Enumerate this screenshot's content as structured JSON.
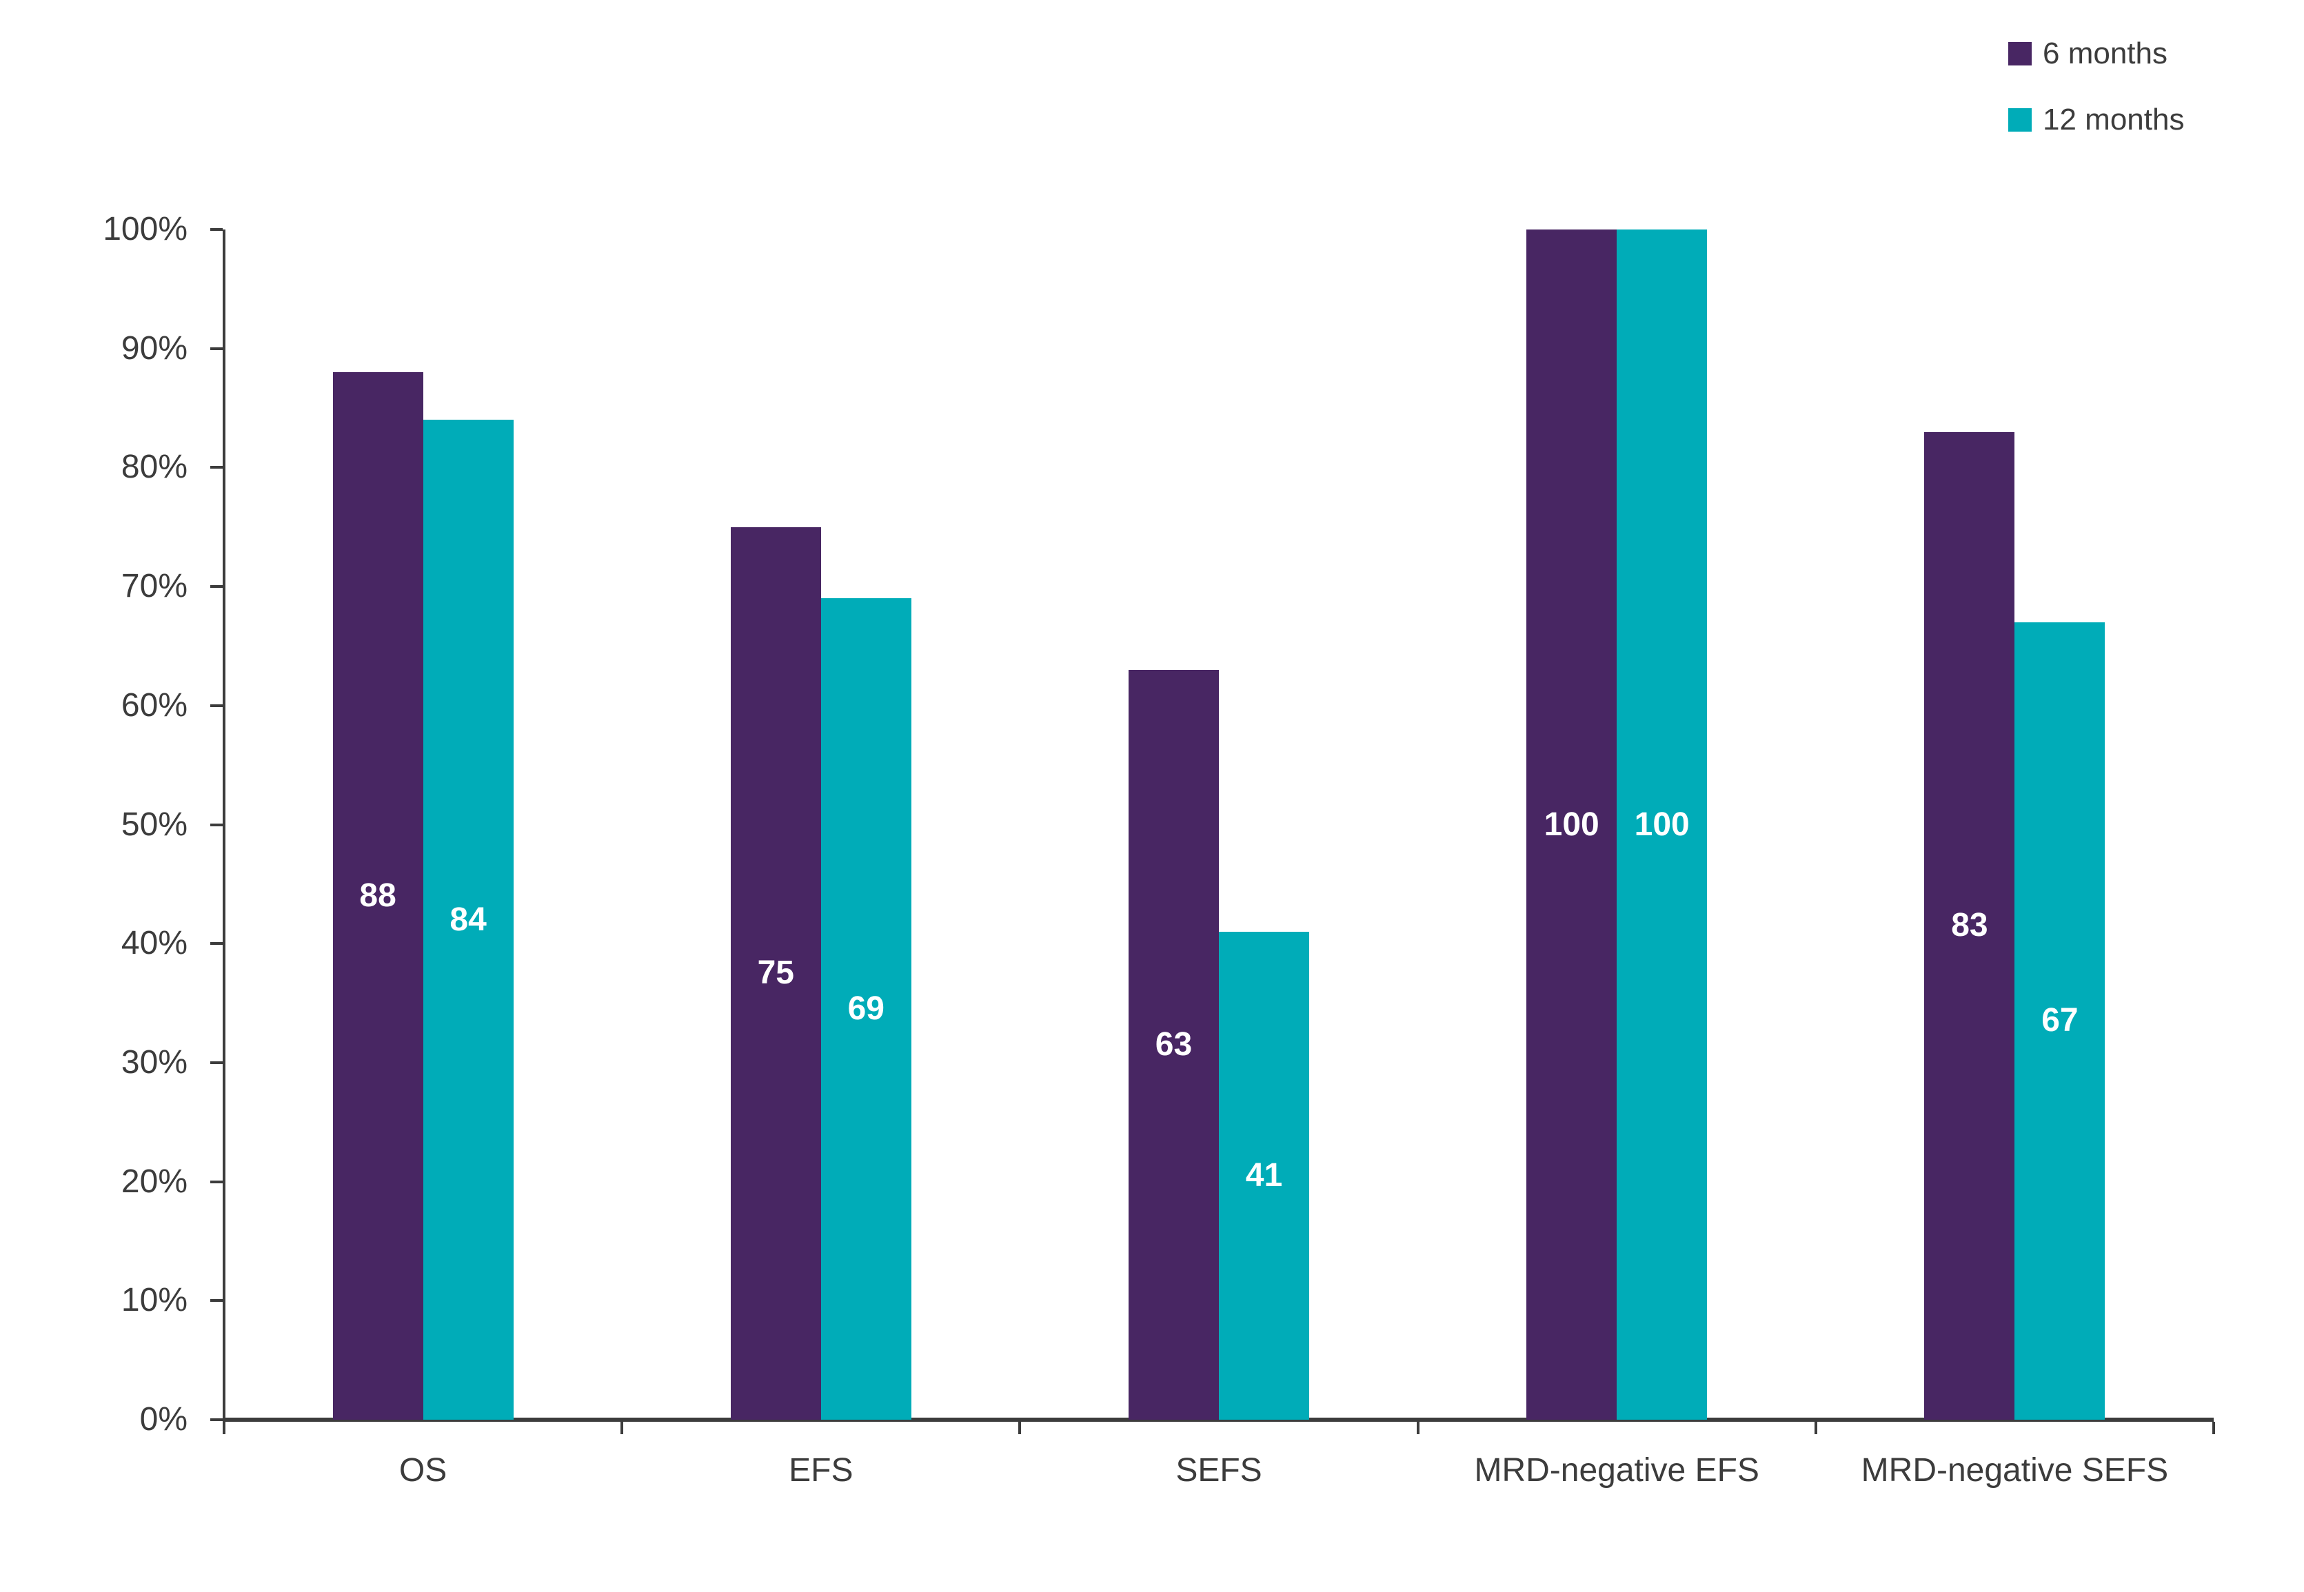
{
  "chart_data": {
    "type": "bar",
    "title": "",
    "categories": [
      "OS",
      "EFS",
      "SEFS",
      "MRD-negative EFS",
      "MRD-negative SEFS"
    ],
    "series": [
      {
        "name": "6 months",
        "color": "#482663",
        "values": [
          88,
          75,
          63,
          100,
          83
        ]
      },
      {
        "name": "12 months",
        "color": "#00acb8",
        "values": [
          84,
          69,
          41,
          100,
          67
        ]
      }
    ],
    "xlabel": "",
    "ylabel": "",
    "ylim": [
      0,
      100
    ],
    "y_ticks": [
      "0%",
      "10%",
      "20%",
      "30%",
      "40%",
      "50%",
      "60%",
      "70%",
      "80%",
      "90%",
      "100%"
    ],
    "grid": false,
    "legend_position": "top-right",
    "value_labels_position": "inside-center",
    "value_label_color": "#ffffff",
    "axis_color": "#3c3c3c"
  }
}
